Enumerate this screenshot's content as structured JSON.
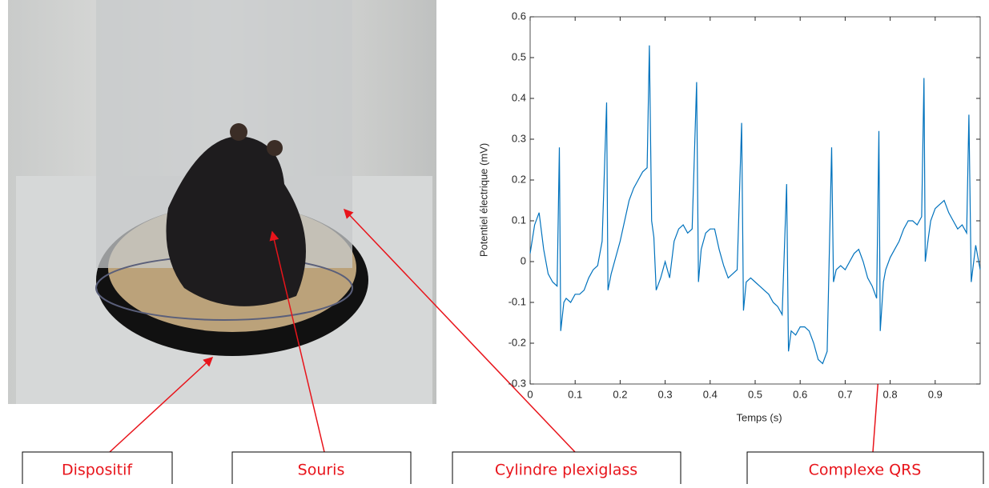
{
  "chart_data": {
    "type": "line",
    "x_label": "Temps (s)",
    "y_label": "Potentiel électrique (mV)",
    "xlim": [
      0,
      1
    ],
    "ylim": [
      -0.3,
      0.6
    ],
    "xticks": [
      0,
      0.1,
      0.2,
      0.3,
      0.4,
      0.5,
      0.6,
      0.7,
      0.8,
      0.9
    ],
    "yticks": [
      -0.3,
      -0.2,
      -0.1,
      0,
      0.1,
      0.2,
      0.3,
      0.4,
      0.5,
      0.6
    ],
    "grid": false,
    "x": [
      0,
      0.01,
      0.02,
      0.03,
      0.04,
      0.05,
      0.06,
      0.065,
      0.068,
      0.075,
      0.08,
      0.09,
      0.1,
      0.11,
      0.12,
      0.13,
      0.14,
      0.15,
      0.16,
      0.17,
      0.173,
      0.18,
      0.19,
      0.2,
      0.21,
      0.22,
      0.23,
      0.24,
      0.25,
      0.26,
      0.265,
      0.27,
      0.275,
      0.28,
      0.29,
      0.3,
      0.31,
      0.32,
      0.33,
      0.34,
      0.35,
      0.36,
      0.37,
      0.374,
      0.38,
      0.39,
      0.4,
      0.41,
      0.42,
      0.43,
      0.44,
      0.45,
      0.46,
      0.47,
      0.474,
      0.48,
      0.49,
      0.5,
      0.51,
      0.52,
      0.53,
      0.54,
      0.55,
      0.56,
      0.57,
      0.574,
      0.58,
      0.59,
      0.6,
      0.61,
      0.62,
      0.63,
      0.64,
      0.65,
      0.66,
      0.67,
      0.674,
      0.68,
      0.69,
      0.7,
      0.71,
      0.72,
      0.73,
      0.74,
      0.75,
      0.76,
      0.77,
      0.775,
      0.778,
      0.785,
      0.79,
      0.8,
      0.81,
      0.82,
      0.83,
      0.84,
      0.85,
      0.86,
      0.87,
      0.875,
      0.878,
      0.885,
      0.89,
      0.9,
      0.91,
      0.92,
      0.93,
      0.94,
      0.95,
      0.96,
      0.97,
      0.975,
      0.98,
      0.99,
      1
    ],
    "series": [
      {
        "color": "#0072bd",
        "values": [
          0.02,
          0.09,
          0.12,
          0.03,
          -0.03,
          -0.05,
          -0.06,
          0.28,
          -0.17,
          -0.1,
          -0.09,
          -0.1,
          -0.08,
          -0.08,
          -0.07,
          -0.04,
          -0.02,
          -0.01,
          0.05,
          0.39,
          -0.07,
          -0.03,
          0.01,
          0.05,
          0.1,
          0.15,
          0.18,
          0.2,
          0.22,
          0.23,
          0.53,
          0.1,
          0.06,
          -0.07,
          -0.04,
          0.0,
          -0.04,
          0.05,
          0.08,
          0.09,
          0.07,
          0.08,
          0.44,
          -0.05,
          0.03,
          0.07,
          0.08,
          0.08,
          0.03,
          -0.01,
          -0.04,
          -0.03,
          -0.02,
          0.34,
          -0.12,
          -0.05,
          -0.04,
          -0.05,
          -0.06,
          -0.07,
          -0.08,
          -0.1,
          -0.11,
          -0.13,
          0.19,
          -0.22,
          -0.17,
          -0.18,
          -0.16,
          -0.16,
          -0.17,
          -0.2,
          -0.24,
          -0.25,
          -0.22,
          0.28,
          -0.05,
          -0.02,
          -0.01,
          -0.02,
          0.0,
          0.02,
          0.03,
          0.0,
          -0.04,
          -0.06,
          -0.09,
          0.32,
          -0.17,
          -0.05,
          -0.02,
          0.01,
          0.03,
          0.05,
          0.08,
          0.1,
          0.1,
          0.09,
          0.11,
          0.45,
          0.0,
          0.06,
          0.1,
          0.13,
          0.14,
          0.15,
          0.12,
          0.1,
          0.08,
          0.09,
          0.07,
          0.36,
          -0.05,
          0.04,
          -0.02
        ]
      }
    ]
  },
  "callouts": [
    "Dispositif",
    "Souris",
    "Cylindre plexiglass",
    "Complexe QRS"
  ]
}
